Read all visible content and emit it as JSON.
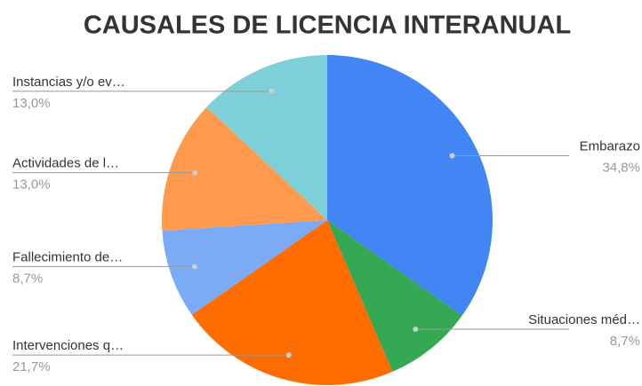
{
  "chart_data": {
    "type": "pie",
    "title": "CAUSALES DE LICENCIA INTERANUAL",
    "categories": [
      "Embarazo",
      "Situaciones méd…",
      "Intervenciones q…",
      "Fallecimiento de…",
      "Actividades de l…",
      "Instancias y/o ev…"
    ],
    "values": [
      34.8,
      8.7,
      21.7,
      8.7,
      13.0,
      13.0
    ],
    "value_labels": [
      "34,8%",
      "8,7%",
      "21,7%",
      "8,7%",
      "13,0%",
      "13,0%"
    ],
    "colors": [
      "#4285f4",
      "#34a853",
      "#ff6d01",
      "#7baaf7",
      "#ff994d",
      "#7ed0d8"
    ]
  }
}
